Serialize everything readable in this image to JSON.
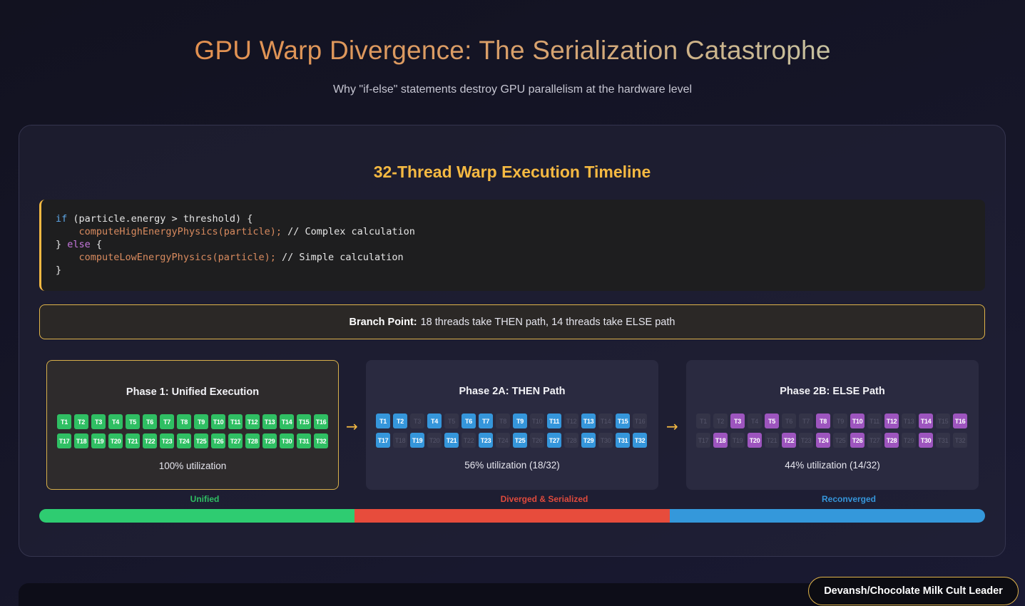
{
  "header": {
    "title": "GPU Warp Divergence: The Serialization Catastrophe",
    "subtitle": "Why \"if-else\" statements destroy GPU parallelism at the hardware level"
  },
  "panel": {
    "title": "32-Thread Warp Execution Timeline",
    "code": {
      "line1_kw": "if",
      "line1_rest": " (particle.energy > threshold) {",
      "line2_fn": "computeHighEnergyPhysics(particle);",
      "line2_comment": " // Complex calculation",
      "line3_brace": "} ",
      "line3_kw": "else",
      "line3_rest": " {",
      "line4_fn": "computeLowEnergyPhysics(particle);",
      "line4_comment": " // Simple calculation",
      "line5": "}"
    },
    "branch": {
      "label": "Branch Point:",
      "text": "18 threads take THEN path, 14 threads take ELSE path"
    },
    "phases": [
      {
        "title": "Phase 1: Unified Execution",
        "utilization": "100% utilization",
        "active_color": "green",
        "active_threads": [
          1,
          2,
          3,
          4,
          5,
          6,
          7,
          8,
          9,
          10,
          11,
          12,
          13,
          14,
          15,
          16,
          17,
          18,
          19,
          20,
          21,
          22,
          23,
          24,
          25,
          26,
          27,
          28,
          29,
          30,
          31,
          32
        ]
      },
      {
        "title": "Phase 2A: THEN Path",
        "utilization": "56% utilization (18/32)",
        "active_color": "blue",
        "active_threads": [
          1,
          2,
          4,
          6,
          7,
          9,
          11,
          13,
          15,
          17,
          19,
          21,
          23,
          25,
          27,
          29,
          31,
          32
        ]
      },
      {
        "title": "Phase 2B: ELSE Path",
        "utilization": "44% utilization (14/32)",
        "active_color": "purple",
        "active_threads": [
          3,
          5,
          8,
          10,
          12,
          14,
          16,
          18,
          20,
          22,
          24,
          26,
          28,
          30
        ]
      }
    ],
    "arrows": [
      "→",
      "→"
    ],
    "timeline": {
      "labels": [
        {
          "text": "Unified",
          "color": "#2fbf63"
        },
        {
          "text": "Diverged & Serialized",
          "color": "#e04a3c"
        },
        {
          "text": "Reconverged",
          "color": "#3596db"
        }
      ],
      "segments": [
        "#2ecc71",
        "#e74c3c",
        "#3498db"
      ]
    }
  },
  "thread_prefix": "T",
  "credit": "Devansh/Chocolate Milk Cult Leader"
}
